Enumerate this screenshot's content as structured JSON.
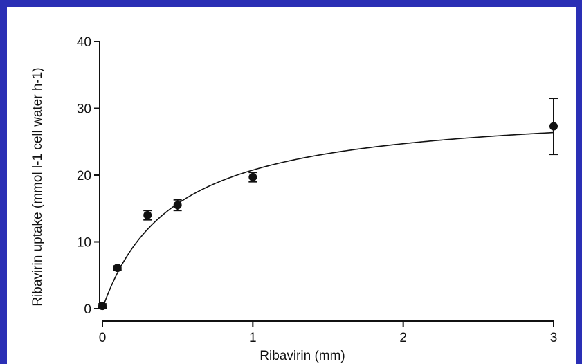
{
  "chart_data": {
    "type": "scatter",
    "title": "",
    "xlabel": "Ribavirin (mm)",
    "ylabel": "Ribavirin uptake (mmol l-1 cell water h-1)",
    "xlim": [
      0,
      3
    ],
    "ylim": [
      0,
      40
    ],
    "x_ticks": [
      0,
      1,
      2,
      3
    ],
    "y_ticks": [
      0,
      10,
      20,
      30,
      40
    ],
    "grid": false,
    "legend": "none",
    "points": [
      {
        "x": 0.0,
        "y": 0.4,
        "err": 0.3
      },
      {
        "x": 0.1,
        "y": 6.1,
        "err": 0.3
      },
      {
        "x": 0.3,
        "y": 14.0,
        "err": 0.7
      },
      {
        "x": 0.5,
        "y": 15.5,
        "err": 0.8
      },
      {
        "x": 1.0,
        "y": 19.7,
        "err": 0.7
      },
      {
        "x": 3.0,
        "y": 27.3,
        "err": 4.2
      }
    ],
    "fit_curve": {
      "model": "michaelis-menten",
      "vmax": 30.5,
      "km": 0.47
    }
  },
  "colors": {
    "background": "#2a2fb5",
    "panel": "#ffffff",
    "ink": "#111111"
  }
}
